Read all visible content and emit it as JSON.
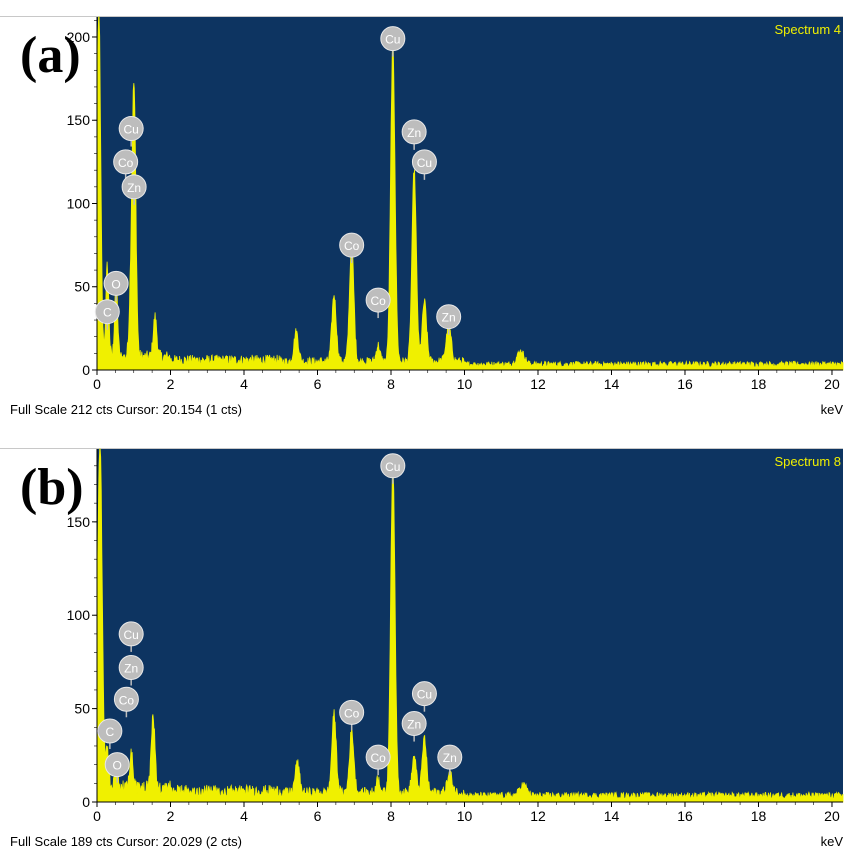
{
  "chart_data": [
    {
      "id": "a",
      "type": "line",
      "panel_label": "(a)",
      "spectrum_name": "Spectrum 4",
      "footer": "Full Scale 212 cts Cursor: 20.154  (1 cts)",
      "xunit": "keV",
      "xlim": [
        0,
        20.3
      ],
      "ylim": [
        0,
        212
      ],
      "xticks": [
        0,
        2,
        4,
        6,
        8,
        10,
        12,
        14,
        16,
        18,
        20
      ],
      "yticks": [
        0,
        50,
        100,
        150,
        200
      ],
      "colors": {
        "background": "#0d3461",
        "trace": "#f0f000",
        "marker": "#bdbdbd"
      },
      "peaks": [
        {
          "x": 0.05,
          "y": 212,
          "w": 0.05
        },
        {
          "x": 0.28,
          "y": 55,
          "w": 0.04
        },
        {
          "x": 0.52,
          "y": 48,
          "w": 0.04
        },
        {
          "x": 0.93,
          "y": 42,
          "w": 0.05
        },
        {
          "x": 1.01,
          "y": 152,
          "w": 0.05
        },
        {
          "x": 1.58,
          "y": 24,
          "w": 0.05
        },
        {
          "x": 5.42,
          "y": 18,
          "w": 0.06
        },
        {
          "x": 6.45,
          "y": 40,
          "w": 0.06
        },
        {
          "x": 6.93,
          "y": 70,
          "w": 0.06
        },
        {
          "x": 7.65,
          "y": 10,
          "w": 0.05
        },
        {
          "x": 8.05,
          "y": 190,
          "w": 0.06
        },
        {
          "x": 8.63,
          "y": 115,
          "w": 0.06
        },
        {
          "x": 8.91,
          "y": 36,
          "w": 0.06
        },
        {
          "x": 9.57,
          "y": 21,
          "w": 0.07
        },
        {
          "x": 11.53,
          "y": 8,
          "w": 0.1
        }
      ],
      "markers": [
        {
          "label": "Cu",
          "x": 0.93,
          "y": 145
        },
        {
          "label": "Co",
          "x": 0.78,
          "y": 125
        },
        {
          "label": "Zn",
          "x": 1.01,
          "y": 110
        },
        {
          "label": "O",
          "x": 0.52,
          "y": 52
        },
        {
          "label": "C",
          "x": 0.28,
          "y": 35
        },
        {
          "label": "Cu",
          "x": 8.05,
          "y": 199
        },
        {
          "label": "Zn",
          "x": 8.63,
          "y": 143
        },
        {
          "label": "Cu",
          "x": 8.91,
          "y": 125
        },
        {
          "label": "Co",
          "x": 6.93,
          "y": 75
        },
        {
          "label": "Co",
          "x": 7.65,
          "y": 42
        },
        {
          "label": "Zn",
          "x": 9.57,
          "y": 32
        }
      ]
    },
    {
      "id": "b",
      "type": "line",
      "panel_label": "(b)",
      "spectrum_name": "Spectrum 8",
      "footer": "Full Scale 189 cts Cursor: 20.029  (2 cts)",
      "xunit": "keV",
      "xlim": [
        0,
        20.3
      ],
      "ylim": [
        0,
        189
      ],
      "xticks": [
        0,
        2,
        4,
        6,
        8,
        10,
        12,
        14,
        16,
        18,
        20
      ],
      "yticks": [
        0,
        50,
        100,
        150
      ],
      "colors": {
        "background": "#0d3461",
        "trace": "#f0f000",
        "marker": "#bdbdbd"
      },
      "peaks": [
        {
          "x": 0.08,
          "y": 189,
          "w": 0.06
        },
        {
          "x": 0.28,
          "y": 20,
          "w": 0.04
        },
        {
          "x": 0.52,
          "y": 14,
          "w": 0.04
        },
        {
          "x": 0.93,
          "y": 18,
          "w": 0.05
        },
        {
          "x": 1.53,
          "y": 38,
          "w": 0.05
        },
        {
          "x": 5.45,
          "y": 16,
          "w": 0.06
        },
        {
          "x": 6.45,
          "y": 42,
          "w": 0.06
        },
        {
          "x": 6.93,
          "y": 33,
          "w": 0.06
        },
        {
          "x": 7.65,
          "y": 8,
          "w": 0.05
        },
        {
          "x": 8.05,
          "y": 175,
          "w": 0.06
        },
        {
          "x": 8.63,
          "y": 19,
          "w": 0.06
        },
        {
          "x": 8.91,
          "y": 29,
          "w": 0.06
        },
        {
          "x": 9.6,
          "y": 10,
          "w": 0.07
        },
        {
          "x": 11.6,
          "y": 6,
          "w": 0.1
        }
      ],
      "markers": [
        {
          "label": "Cu",
          "x": 0.93,
          "y": 90
        },
        {
          "label": "Zn",
          "x": 0.93,
          "y": 72
        },
        {
          "label": "Co",
          "x": 0.8,
          "y": 55
        },
        {
          "label": "C",
          "x": 0.35,
          "y": 38
        },
        {
          "label": "O",
          "x": 0.55,
          "y": 20
        },
        {
          "label": "Cu",
          "x": 8.05,
          "y": 180
        },
        {
          "label": "Co",
          "x": 6.93,
          "y": 48
        },
        {
          "label": "Co",
          "x": 7.65,
          "y": 24
        },
        {
          "label": "Cu",
          "x": 8.91,
          "y": 58
        },
        {
          "label": "Zn",
          "x": 8.63,
          "y": 42
        },
        {
          "label": "Zn",
          "x": 9.6,
          "y": 24
        }
      ]
    }
  ]
}
